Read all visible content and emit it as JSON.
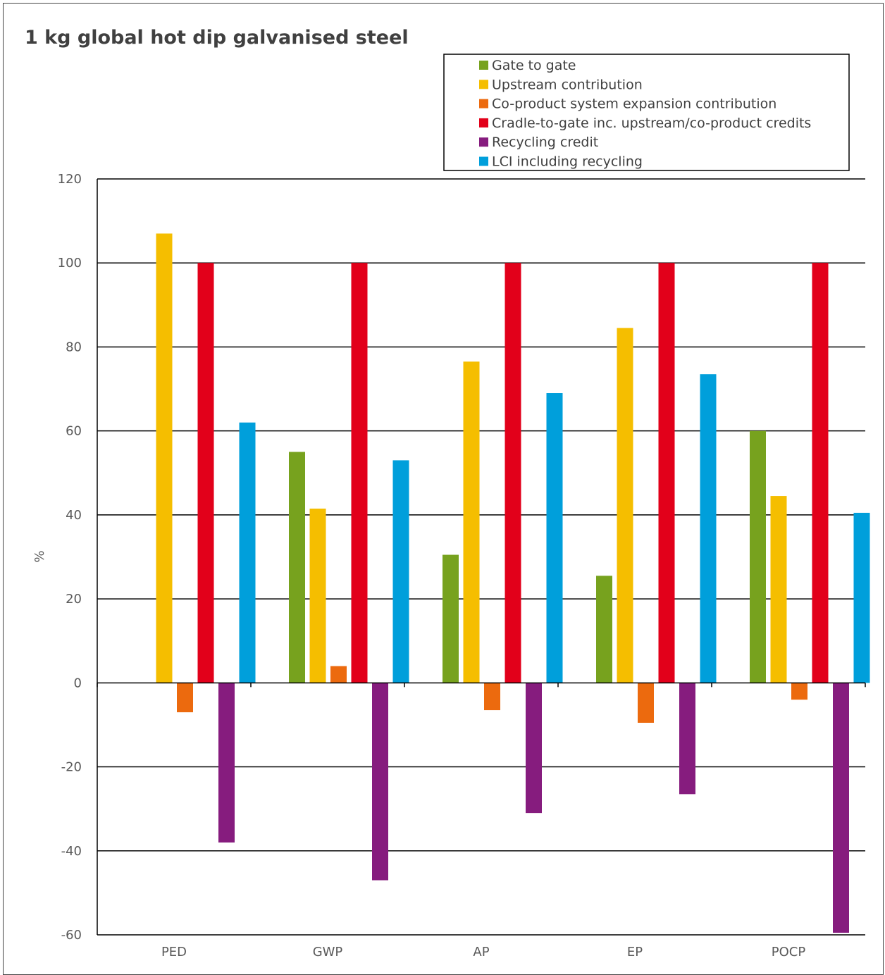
{
  "chart_data": {
    "type": "bar",
    "title": "1 kg global hot dip galvanised steel",
    "ylabel": "%",
    "xlabel": "",
    "ylim": [
      -60,
      120
    ],
    "yticks": [
      120,
      100,
      80,
      60,
      40,
      20,
      0,
      -20,
      -40,
      -60
    ],
    "grid": true,
    "legend_position": "top-right",
    "categories": [
      "PED",
      "GWP",
      "AP",
      "EP",
      "POCP"
    ],
    "series": [
      {
        "name": "Gate to gate",
        "color": "#77A21E",
        "values": [
          0,
          55,
          30.5,
          25.5,
          60
        ]
      },
      {
        "name": "Upstream contribution",
        "color": "#F5BE00",
        "values": [
          107,
          41.5,
          76.5,
          84.5,
          44.5
        ]
      },
      {
        "name": "Co-product system expansion contribution",
        "color": "#EC6A0E",
        "values": [
          -7,
          4,
          -6.5,
          -9.5,
          -4
        ]
      },
      {
        "name": "Cradle-to-gate inc. upstream/co-product credits",
        "color": "#E2001A",
        "values": [
          100,
          100,
          100,
          100,
          100
        ]
      },
      {
        "name": "Recycling credit",
        "color": "#861C7E",
        "values": [
          -38,
          -47,
          -31,
          -26.5,
          -59.5
        ]
      },
      {
        "name": "LCI including recycling",
        "color": "#009FDB",
        "values": [
          62,
          53,
          69,
          73.5,
          40.5
        ]
      }
    ]
  }
}
